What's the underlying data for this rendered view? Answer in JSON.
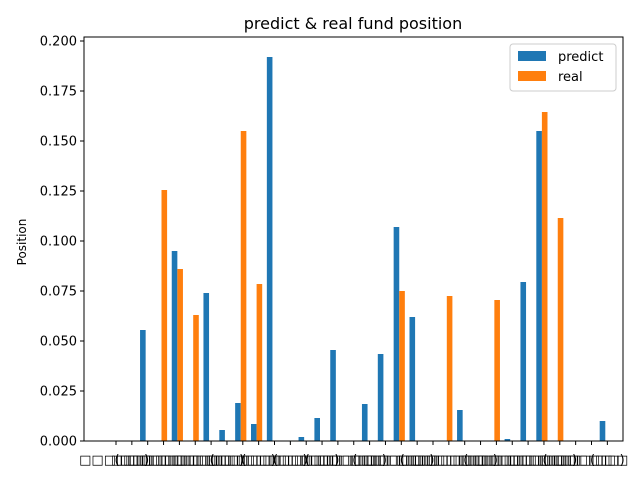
{
  "chart_data": {
    "type": "bar",
    "title": "predict & real fund position",
    "xlabel": "",
    "ylabel": "Position",
    "ylim": [
      0,
      0.2
    ],
    "yticks": [
      "0.000",
      "0.025",
      "0.050",
      "0.075",
      "0.100",
      "0.125",
      "0.150",
      "0.175",
      "0.200"
    ],
    "grid": false,
    "legend": "top-right",
    "categories": [
      "□□□□□□",
      "(□□)",
      "□□□□□□",
      "□□□□□□",
      "□□□□□□",
      "□□□□□□",
      "□□□□□□",
      "(□□)",
      "□□□□□□",
      "(□□)",
      "□□□□□□",
      "(□□)",
      "□□□□□□",
      "(□□)",
      "□□□□□□",
      "□□□□□□",
      "(□□)",
      "□□□□□□",
      "□□□□□□",
      "(□□)",
      "□□□□□□",
      "□□□□□□",
      "□□□□□□",
      "(□□)",
      "□□□□□□",
      "□□□□□□",
      "□□□□□□",
      "□□□□□□",
      "(□□)",
      "□□□□□□",
      "□□□□□□",
      "(□□)"
    ],
    "series": [
      {
        "name": "predict",
        "color": "#1f77b4",
        "values": [
          0,
          0.0555,
          0,
          0.095,
          0,
          0.074,
          0.0055,
          0.019,
          0.0085,
          0.192,
          0,
          0.002,
          0.0115,
          0.0455,
          0,
          0.0185,
          0.0435,
          0.107,
          0.062,
          0,
          0,
          0.0155,
          0,
          0,
          0.001,
          0.0795,
          0.155,
          0,
          0,
          0,
          0.01,
          0
        ]
      },
      {
        "name": "real",
        "color": "#ff7f0e",
        "values": [
          0,
          0,
          0.1255,
          0.086,
          0.063,
          0,
          0,
          0.155,
          0.0785,
          0,
          0,
          0,
          0,
          0,
          0,
          0,
          0,
          0.075,
          0,
          0,
          0.0725,
          0,
          0,
          0.0705,
          0,
          0,
          0.1645,
          0.1115,
          0,
          0,
          0,
          0
        ]
      }
    ]
  }
}
